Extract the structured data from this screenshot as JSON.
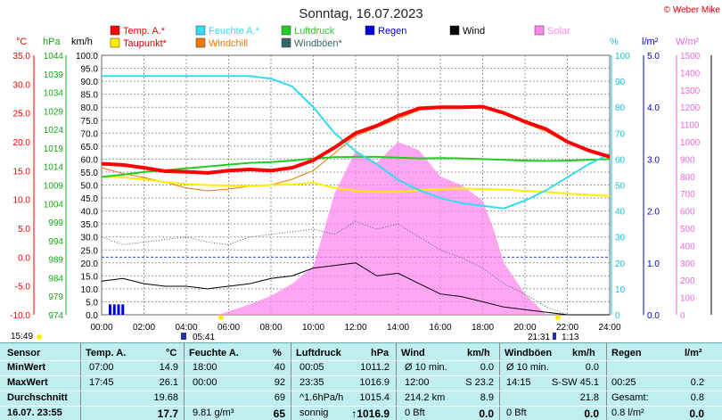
{
  "chart_data": {
    "type": "line",
    "title": "Sonntag, 16.07.2023",
    "credit": "© Weber Mike",
    "legend": [
      {
        "name": "Temp. A.*",
        "color": "#ff0000"
      },
      {
        "name": "Feuchte A.*",
        "color": "#33ddee"
      },
      {
        "name": "Luftdruck",
        "color": "#22cc22"
      },
      {
        "name": "Regen",
        "color": "#0000dd"
      },
      {
        "name": "Wind",
        "color": "#000000"
      },
      {
        "name": "Solar",
        "color": "#ff88ee"
      },
      {
        "name": "Taupunkt*",
        "color": "#ffee00"
      },
      {
        "name": "Windchill",
        "color": "#ee7700"
      },
      {
        "name": "Windböen*",
        "color": "#336666"
      }
    ],
    "axis_units": {
      "temp": "°C",
      "pressure": "hPa",
      "wind": "km/h",
      "humidity": "%",
      "rain": "l/m²",
      "solar": "W/m²"
    },
    "x_ticks": [
      "00:00",
      "02:00",
      "04:00",
      "06:00",
      "08:00",
      "10:00",
      "12:00",
      "14:00",
      "16:00",
      "18:00",
      "20:00",
      "22:00",
      "24:00"
    ],
    "temp_ticks": [
      "35.0",
      "30.0",
      "25.0",
      "20.0",
      "15.0",
      "10.0",
      "5.0",
      "0.0",
      "-5.0",
      "-10.0"
    ],
    "pressure_ticks": [
      "1044",
      "1039",
      "1034",
      "1029",
      "1024",
      "1019",
      "1014",
      "1009",
      "1004",
      "999",
      "994",
      "989",
      "984",
      "979",
      "974"
    ],
    "wind_ticks": [
      "100.0",
      "95.0",
      "90.0",
      "85.0",
      "80.0",
      "75.0",
      "70.0",
      "65.0",
      "60.0",
      "55.0",
      "50.0",
      "45.0",
      "40.0",
      "35.0",
      "30.0",
      "25.0",
      "20.0",
      "15.0",
      "10.0",
      "5.0",
      "0.0"
    ],
    "humidity_ticks": [
      "100",
      "90",
      "80",
      "70",
      "60",
      "50",
      "40",
      "30",
      "20",
      "10",
      "0"
    ],
    "rain_ticks": [
      "5.0",
      "4.0",
      "3.0",
      "2.0",
      "1.0",
      "0.0"
    ],
    "solar_ticks": [
      "1500",
      "1400",
      "1300",
      "1200",
      "1100",
      "1000",
      "900",
      "800",
      "700",
      "600",
      "500",
      "400",
      "300",
      "200",
      "100",
      "0"
    ],
    "temp_range": [
      -10,
      35
    ],
    "wind_range": [
      0,
      100
    ],
    "humidity_range": [
      0,
      100
    ],
    "rain_range": [
      0,
      5
    ],
    "solar_range": [
      0,
      1500
    ],
    "x_range_hours": [
      0,
      24
    ],
    "sunrise_label": "05:41",
    "sunset_label": "21:31",
    "moon_label": "1:13",
    "left_time_label": "15:49",
    "series": {
      "temp": {
        "x": [
          0,
          1,
          2,
          3,
          4,
          5,
          6,
          7,
          8,
          9,
          10,
          11,
          12,
          13,
          14,
          15,
          16,
          17,
          18,
          19,
          20,
          21,
          22,
          23,
          24
        ],
        "y": [
          16.2,
          16,
          15.5,
          14.9,
          14.8,
          14.6,
          15,
          15.2,
          15,
          15.5,
          16.8,
          19,
          21.5,
          22.8,
          24.5,
          25.8,
          26,
          26,
          26.1,
          25,
          23.5,
          22.2,
          20,
          18.5,
          17.4
        ]
      },
      "dew": {
        "x": [
          0,
          1,
          2,
          3,
          4,
          5,
          6,
          7,
          8,
          9,
          10,
          11,
          12,
          13,
          14,
          15,
          16,
          17,
          18,
          19,
          20,
          21,
          22,
          23,
          24
        ],
        "y": [
          14,
          13.8,
          13.5,
          13,
          12.7,
          12.5,
          12.4,
          12.3,
          12.5,
          12.6,
          12.9,
          12,
          11.5,
          11.3,
          11.3,
          11.6,
          11.8,
          11.9,
          11.8,
          11.7,
          11.5,
          11.3,
          11,
          10.8,
          10.6
        ]
      },
      "windchill": {
        "x": [
          0,
          1,
          2,
          3,
          4,
          5,
          6,
          7,
          8,
          9,
          10,
          11,
          12,
          13,
          14,
          15,
          16,
          17,
          18,
          19,
          20,
          21,
          22,
          23,
          24
        ],
        "y": [
          15.5,
          14.5,
          13.8,
          13,
          12,
          11.5,
          11.8,
          12.3,
          12.5,
          13.5,
          15,
          18,
          21,
          22.5,
          24,
          25.5,
          25.8,
          25.8,
          26,
          24.8,
          23.2,
          21.8,
          19.8,
          18.3,
          17.2
        ]
      },
      "humidity": {
        "x": [
          0,
          1,
          2,
          3,
          4,
          5,
          6,
          7,
          8,
          9,
          10,
          11,
          12,
          13,
          14,
          15,
          16,
          17,
          18,
          19,
          20,
          21,
          22,
          23,
          24
        ],
        "y": [
          92,
          92,
          92,
          92,
          92,
          92,
          92,
          92,
          91,
          88,
          80,
          70,
          63,
          58,
          52,
          48,
          45,
          43,
          42,
          41,
          44,
          48,
          53,
          58,
          62
        ]
      },
      "pressure": {
        "x": [
          0,
          1,
          2,
          3,
          4,
          5,
          6,
          7,
          8,
          9,
          10,
          11,
          12,
          13,
          14,
          15,
          16,
          17,
          18,
          19,
          20,
          21,
          22,
          23,
          24
        ],
        "y": [
          1011.2,
          1011.8,
          1012.5,
          1013,
          1013.5,
          1014,
          1014.5,
          1015,
          1015.2,
          1015.6,
          1016.2,
          1016.5,
          1016.6,
          1016.6,
          1016.4,
          1016.2,
          1016.3,
          1016.2,
          1016,
          1015.8,
          1015.6,
          1015.5,
          1015.6,
          1015.8,
          1016
        ]
      },
      "wind": {
        "x": [
          0,
          1,
          2,
          3,
          4,
          5,
          6,
          7,
          8,
          9,
          10,
          11,
          12,
          13,
          14,
          15,
          16,
          17,
          18,
          19,
          20,
          21,
          22,
          23,
          24
        ],
        "y": [
          13,
          14,
          12,
          11,
          11,
          10,
          11,
          12,
          14,
          15,
          18,
          19,
          20,
          15,
          16,
          12,
          8,
          7,
          5,
          3,
          2,
          1,
          0,
          0,
          0
        ]
      },
      "gusts": {
        "x": [
          0,
          1,
          2,
          3,
          4,
          5,
          6,
          7,
          8,
          9,
          10,
          11,
          12,
          13,
          14,
          15,
          16,
          17,
          18,
          19,
          20,
          21,
          22,
          23,
          24
        ],
        "y": [
          30,
          27,
          28,
          29,
          30,
          28,
          27,
          30,
          31,
          32,
          33,
          31,
          36,
          33,
          35,
          30,
          25,
          22,
          18,
          12,
          8,
          3,
          0,
          0,
          0
        ]
      },
      "solar": {
        "x": [
          0,
          5.5,
          6,
          7,
          8,
          9,
          10,
          11,
          12,
          13,
          14,
          15,
          16,
          17,
          18,
          18.5,
          19,
          20,
          20.5,
          21,
          24
        ],
        "y": [
          0,
          0,
          20,
          60,
          110,
          180,
          280,
          700,
          950,
          880,
          1000,
          950,
          800,
          750,
          660,
          500,
          300,
          120,
          60,
          0,
          0
        ]
      },
      "rain": {
        "x": [
          0.4,
          0.6,
          0.8,
          1.0
        ],
        "y": [
          0.2,
          0.2,
          0.2,
          0.2
        ]
      }
    }
  },
  "table": {
    "headers": {
      "sensor": "Sensor",
      "temp": "Temp. A.",
      "temp_unit": "°C",
      "hum": "Feuchte A.",
      "hum_unit": "%",
      "press": "Luftdruck",
      "press_unit": "hPa",
      "wind": "Wind",
      "wind_unit": "km/h",
      "gust": "Windböen",
      "gust_unit": "km/h",
      "rain": "Regen",
      "rain_unit": "l/m²"
    },
    "rows": [
      {
        "label": "MinWert",
        "t_time": "07:00",
        "t_val": "14.9",
        "h_time": "18:00",
        "h_val": "40",
        "p_time": "00:05",
        "p_val": "1011.2",
        "w_time": "Ø 10 min.",
        "w_val": "0.0",
        "g_time": "Ø 10 min.",
        "g_val": "0.0",
        "r_time": "",
        "r_val": ""
      },
      {
        "label": "MaxWert",
        "t_time": "17:45",
        "t_val": "26.1",
        "h_time": "00:00",
        "h_val": "92",
        "p_time": "23:35",
        "p_val": "1016.9",
        "w_time": "12:00",
        "w_dir": "S 23.2",
        "g_time": "14:15",
        "g_dir": "S-SW 45.1",
        "r_time": "00:25",
        "r_val": "0.2"
      },
      {
        "label": "Durchschnitt",
        "t_time": "",
        "t_val": "19.68",
        "h_time": "",
        "h_val": "69",
        "p_time": "^1.6hPa/h",
        "p_val": "1015.4",
        "w_time": "214.2 km",
        "w_val": "8.9",
        "g_time": "",
        "g_val": "21.8",
        "r_time": "Gesamt:",
        "r_val": "0.8"
      },
      {
        "label": "16.07. 23:55",
        "t_time": "",
        "t_val": "17.7",
        "h_time": "9.81 g/m³",
        "h_val": "65",
        "p_time": "sonnig",
        "p_val": "↑1016.9",
        "w_time": "0 Bft",
        "w_val": "0.0",
        "g_time": "0 Bft",
        "g_val": "0.0",
        "r_time": "0.8 l/m²",
        "r_val": "0.0"
      }
    ]
  },
  "colors": {
    "grid": "#999999",
    "plot_bg": "#ffffff",
    "table_bg": "#bfeef0"
  }
}
